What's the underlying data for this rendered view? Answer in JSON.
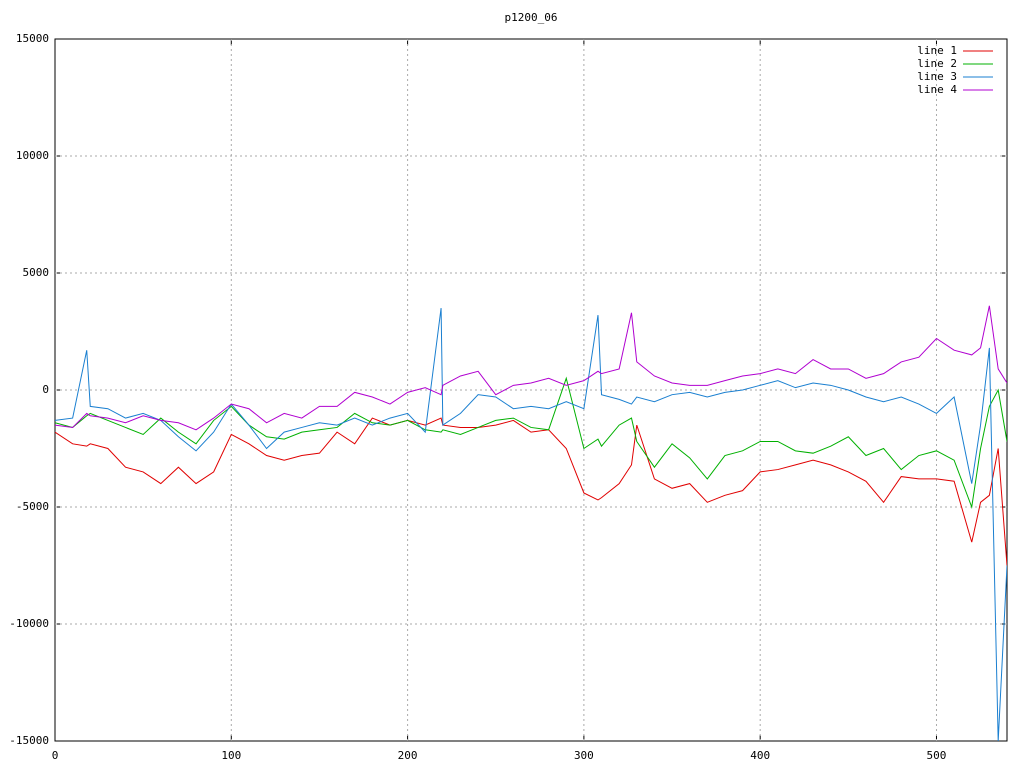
{
  "chart_data": {
    "type": "line",
    "title": "p1200_06",
    "x": [
      0,
      10,
      18,
      20,
      30,
      40,
      50,
      60,
      70,
      80,
      90,
      100,
      110,
      120,
      130,
      140,
      150,
      160,
      170,
      180,
      190,
      200,
      210,
      219,
      220,
      230,
      240,
      250,
      260,
      270,
      280,
      290,
      300,
      308,
      310,
      320,
      327,
      330,
      340,
      350,
      360,
      370,
      380,
      390,
      400,
      410,
      420,
      430,
      440,
      450,
      460,
      470,
      480,
      490,
      500,
      510,
      520,
      525,
      530,
      535,
      540
    ],
    "series": [
      {
        "name": "line 1",
        "color": "#e00000",
        "values": [
          -1800,
          -2300,
          -2400,
          -2300,
          -2500,
          -3300,
          -3500,
          -4000,
          -3300,
          -4000,
          -3500,
          -1900,
          -2300,
          -2800,
          -3000,
          -2800,
          -2700,
          -1800,
          -2300,
          -1200,
          -1500,
          -1300,
          -1500,
          -1200,
          -1500,
          -1600,
          -1600,
          -1500,
          -1300,
          -1800,
          -1700,
          -2500,
          -4400,
          -4700,
          -4600,
          -4000,
          -3200,
          -1500,
          -3800,
          -4200,
          -4000,
          -4800,
          -4500,
          -4300,
          -3500,
          -3400,
          -3200,
          -3000,
          -3200,
          -3500,
          -3900,
          -4800,
          -3700,
          -3800,
          -3800,
          -3900,
          -6500,
          -4800,
          -4500,
          -2500,
          -7500
        ]
      },
      {
        "name": "line 2",
        "color": "#00b000",
        "values": [
          -1400,
          -1600,
          -1100,
          -1000,
          -1300,
          -1600,
          -1900,
          -1200,
          -1800,
          -2300,
          -1300,
          -700,
          -1500,
          -2000,
          -2100,
          -1800,
          -1700,
          -1600,
          -1000,
          -1400,
          -1500,
          -1300,
          -1700,
          -1800,
          -1700,
          -1900,
          -1600,
          -1300,
          -1200,
          -1600,
          -1700,
          500,
          -2500,
          -2100,
          -2400,
          -1500,
          -1200,
          -2200,
          -3300,
          -2300,
          -2900,
          -3800,
          -2800,
          -2600,
          -2200,
          -2200,
          -2600,
          -2700,
          -2400,
          -2000,
          -2800,
          -2500,
          -3400,
          -2800,
          -2600,
          -3000,
          -5000,
          -2500,
          -700,
          0,
          -2200
        ]
      },
      {
        "name": "line 3",
        "color": "#1a7fd0",
        "values": [
          -1300,
          -1200,
          1700,
          -700,
          -800,
          -1200,
          -1000,
          -1300,
          -2000,
          -2600,
          -1800,
          -600,
          -1500,
          -2500,
          -1800,
          -1600,
          -1400,
          -1500,
          -1200,
          -1500,
          -1200,
          -1000,
          -1800,
          3500,
          -1500,
          -1000,
          -200,
          -300,
          -800,
          -700,
          -800,
          -500,
          -800,
          3200,
          -200,
          -400,
          -600,
          -300,
          -500,
          -200,
          -100,
          -300,
          -100,
          0,
          200,
          400,
          100,
          300,
          200,
          0,
          -300,
          -500,
          -300,
          -600,
          -1000,
          -300,
          -4000,
          -1500,
          1800,
          -15000,
          -7500
        ]
      },
      {
        "name": "line 4",
        "color": "#b000d0",
        "values": [
          -1500,
          -1600,
          -1000,
          -1100,
          -1200,
          -1400,
          -1100,
          -1300,
          -1400,
          -1700,
          -1200,
          -600,
          -800,
          -1400,
          -1000,
          -1200,
          -700,
          -700,
          -100,
          -300,
          -600,
          -100,
          100,
          -200,
          200,
          600,
          800,
          -200,
          200,
          300,
          500,
          200,
          400,
          800,
          700,
          900,
          3300,
          1200,
          600,
          300,
          200,
          200,
          400,
          600,
          700,
          900,
          700,
          1300,
          900,
          900,
          500,
          700,
          1200,
          1400,
          2200,
          1700,
          1500,
          1800,
          3600,
          900,
          300
        ]
      }
    ],
    "xlim": [
      0,
      540
    ],
    "xticks": [
      0,
      100,
      200,
      300,
      400,
      500
    ],
    "ylim": [
      -15000,
      15000
    ],
    "yticks": [
      -15000,
      -10000,
      -5000,
      0,
      5000,
      10000,
      15000
    ],
    "grid": true,
    "legend": "top-right"
  }
}
